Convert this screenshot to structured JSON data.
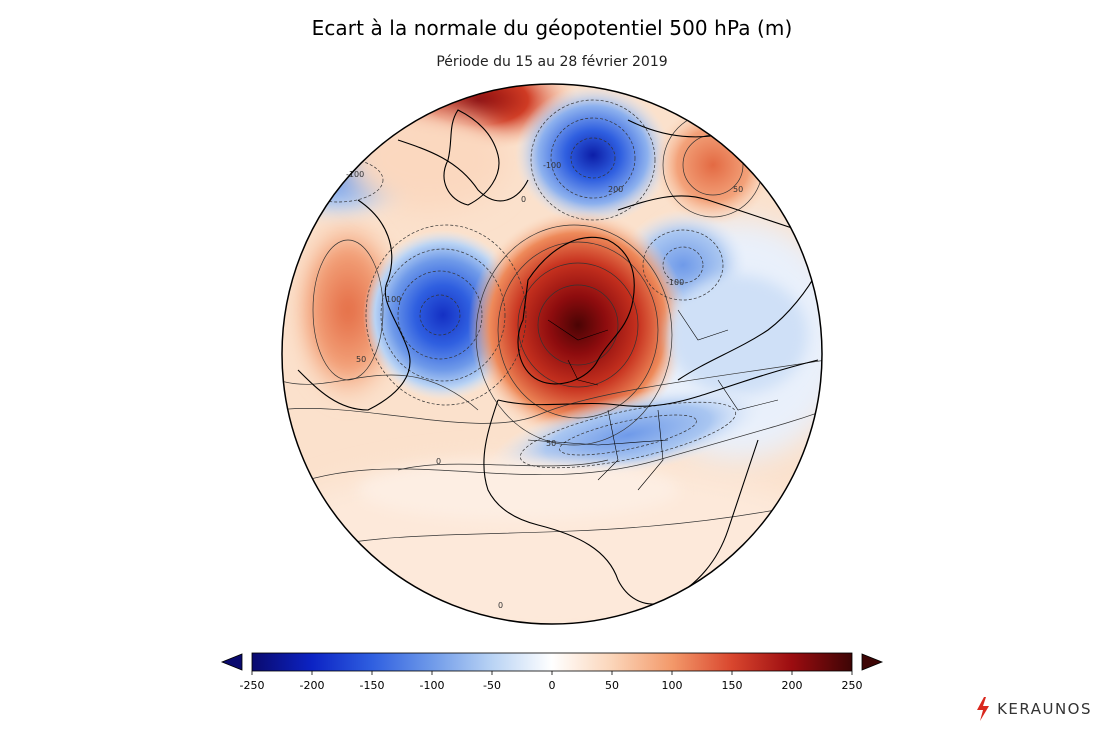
{
  "title": "Ecart à la normale du géopotentiel 500 hPa (m)",
  "subtitle": "Période du 15 au 28 février 2019",
  "map": {
    "variable": "500 hPa geopotential height anomaly",
    "unit": "m",
    "projection": "orthographic (Atlantic–Europe centred)",
    "anomaly_centres": [
      {
        "region": "Central Europe / Baltic",
        "sign": "positive",
        "peak_m": 250
      },
      {
        "region": "North Atlantic (south of Greenland)",
        "sign": "negative",
        "peak_m": -200
      },
      {
        "region": "Arctic / Barents",
        "sign": "negative",
        "peak_m": -220
      },
      {
        "region": "Northern Siberia",
        "sign": "positive",
        "peak_m": 100
      },
      {
        "region": "Greenland / Arctic Canada",
        "sign": "positive",
        "peak_m": 170
      },
      {
        "region": "Canadian Arctic west",
        "sign": "negative",
        "peak_m": -100
      },
      {
        "region": "Eastern North America",
        "sign": "positive",
        "peak_m": 80
      },
      {
        "region": "North Africa / Sahara",
        "sign": "negative",
        "peak_m": -70
      },
      {
        "region": "Western Russia",
        "sign": "negative",
        "peak_m": -100
      }
    ],
    "contour_labels": [
      "-100",
      "0",
      "100",
      "50",
      "-100",
      "50",
      "-100",
      "200",
      "50",
      "0",
      "0"
    ]
  },
  "colorbar": {
    "ticks": [
      "-250",
      "-200",
      "-150",
      "-100",
      "-50",
      "0",
      "50",
      "100",
      "150",
      "200",
      "250"
    ],
    "min": -250,
    "max": 250,
    "colors": [
      "#0a0a6e",
      "#0c23c4",
      "#2f5fe0",
      "#6f9ae9",
      "#b9d3f4",
      "#ffffff",
      "#fbd5b9",
      "#f3996a",
      "#d9462e",
      "#9b0c10",
      "#3d0505"
    ]
  },
  "branding": {
    "logo_text": "KERAUNOS",
    "icon": "lightning-bolt-icon",
    "accent_color": "#d9281e"
  }
}
